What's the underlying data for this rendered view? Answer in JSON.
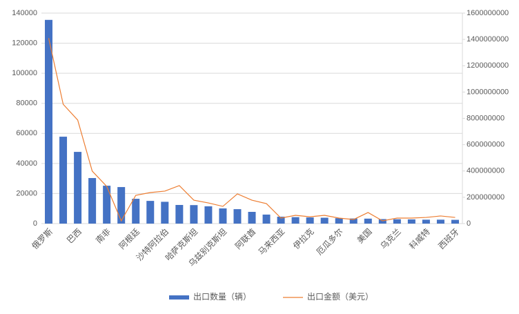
{
  "chart_data": {
    "type": "bar-line",
    "categories": [
      "俄罗斯",
      null,
      "巴西",
      null,
      "南非",
      null,
      "阿根廷",
      null,
      "沙特阿拉伯",
      null,
      "哈萨克斯坦",
      null,
      "乌兹别克斯坦",
      null,
      "阿联酋",
      null,
      "马来西亚",
      null,
      "伊拉克",
      null,
      "厄瓜多尔",
      null,
      "美国",
      null,
      "乌克兰",
      null,
      "科威特",
      null,
      "西班牙"
    ],
    "series": [
      {
        "name": "出口数量（辆）",
        "type": "bar",
        "color": "#4472c4",
        "values": [
          135500,
          57800,
          47700,
          30300,
          25200,
          24300,
          16500,
          15100,
          14500,
          12400,
          12300,
          11500,
          10100,
          9600,
          7800,
          6000,
          4600,
          4300,
          4100,
          3900,
          3600,
          3400,
          3300,
          3000,
          2900,
          2800,
          2600,
          2600,
          2500
        ]
      },
      {
        "name": "出口金额（美元）",
        "type": "line",
        "axis": "y2",
        "color": "#ed7d31",
        "values": [
          1410000000,
          907000000,
          787000000,
          399000000,
          283000000,
          21000000,
          215000000,
          236000000,
          247000000,
          289000000,
          178000000,
          157000000,
          131000000,
          226000000,
          178000000,
          152000000,
          42000000,
          63000000,
          52000000,
          63000000,
          42000000,
          31000000,
          84000000,
          21000000,
          42000000,
          42000000,
          47000000,
          58000000,
          47000000
        ]
      }
    ],
    "ylim": [
      0,
      140000
    ],
    "yticks": [
      0,
      20000,
      40000,
      60000,
      80000,
      100000,
      120000,
      140000
    ],
    "y2lim": [
      0,
      1600000000
    ],
    "y2ticks": [
      0,
      200000000,
      400000000,
      600000000,
      800000000,
      1000000000,
      1200000000,
      1400000000,
      1600000000
    ],
    "grid": true,
    "legend": "bottom"
  }
}
